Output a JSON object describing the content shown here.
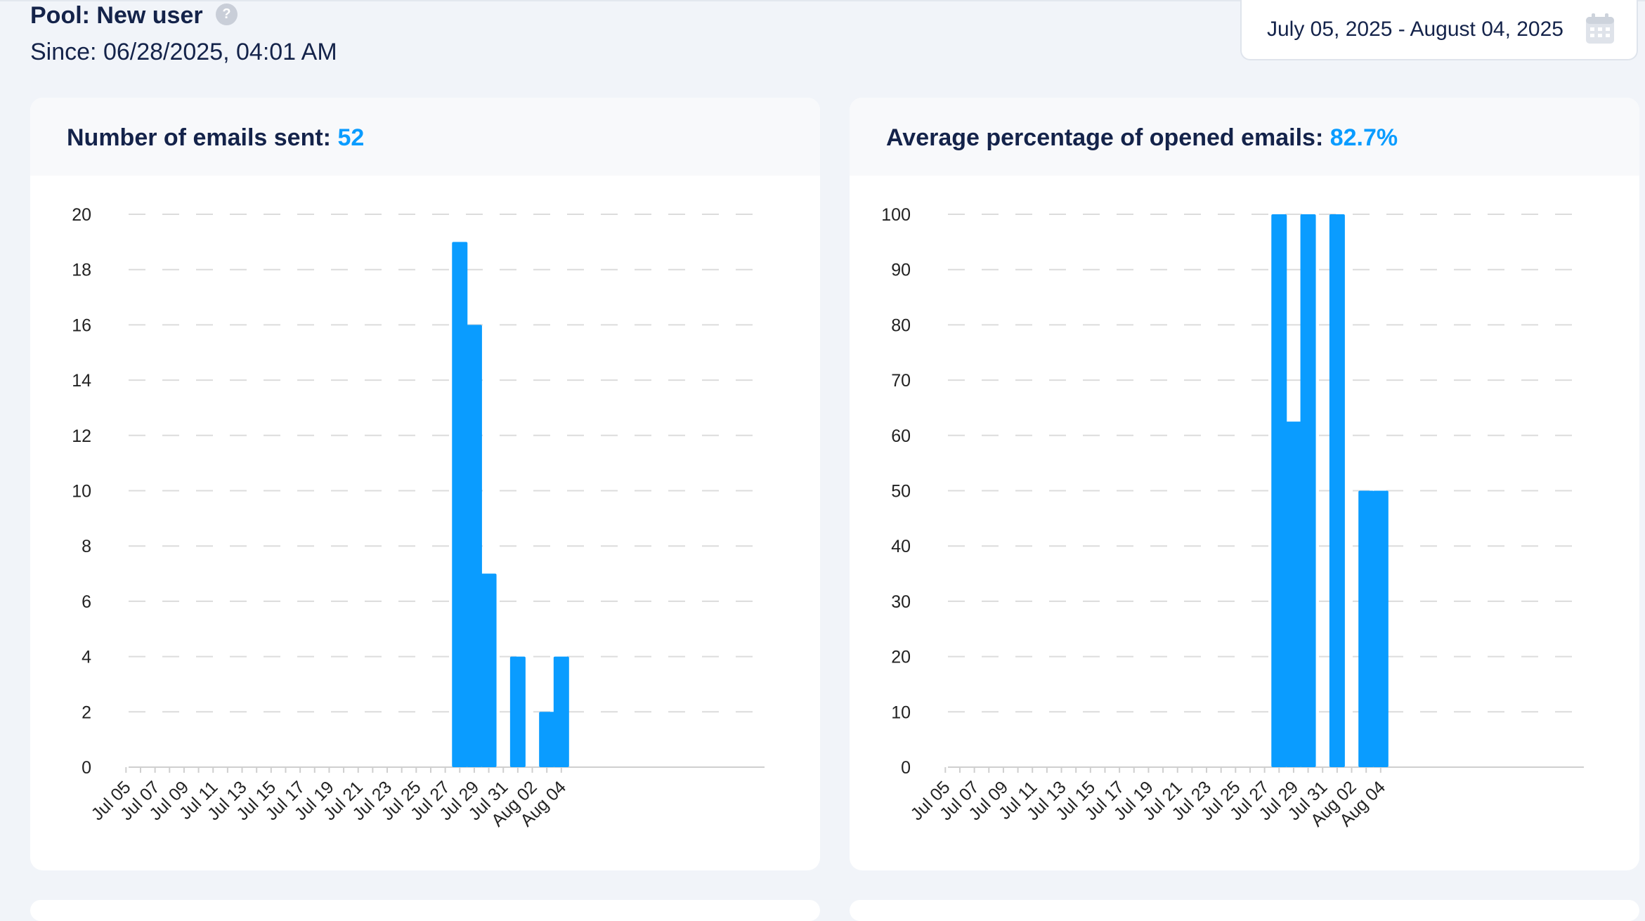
{
  "header": {
    "pool_title": "Pool: New user",
    "help_symbol": "?",
    "since": "Since: 06/28/2025, 04:01 AM",
    "date_range": "July 05, 2025 - August 04, 2025",
    "help_icon": "question-circle-icon",
    "calendar_icon": "calendar-icon"
  },
  "colors": {
    "accent": "#0a9cff",
    "bar": "#0a9cff",
    "title": "#14234a"
  },
  "chart_data": [
    {
      "type": "bar",
      "title": "Number of emails sent:",
      "title_value": "52",
      "categories": [
        "Jul 05",
        "Jul 06",
        "Jul 07",
        "Jul 08",
        "Jul 09",
        "Jul 10",
        "Jul 11",
        "Jul 12",
        "Jul 13",
        "Jul 14",
        "Jul 15",
        "Jul 16",
        "Jul 17",
        "Jul 18",
        "Jul 19",
        "Jul 20",
        "Jul 21",
        "Jul 22",
        "Jul 23",
        "Jul 24",
        "Jul 25",
        "Jul 26",
        "Jul 27",
        "Jul 28",
        "Jul 29",
        "Jul 30",
        "Jul 31",
        "Aug 01",
        "Aug 02",
        "Aug 03",
        "Aug 04"
      ],
      "tick_labels": [
        "Jul 05",
        "Jul 07",
        "Jul 09",
        "Jul 11",
        "Jul 13",
        "Jul 15",
        "Jul 17",
        "Jul 19",
        "Jul 21",
        "Jul 23",
        "Jul 25",
        "Jul 27",
        "Jul 29",
        "Jul 31",
        "Aug 02",
        "Aug 04"
      ],
      "values": [
        0,
        0,
        0,
        0,
        0,
        0,
        0,
        0,
        0,
        0,
        0,
        0,
        0,
        0,
        0,
        0,
        0,
        0,
        0,
        0,
        0,
        0,
        0,
        19,
        16,
        7,
        0,
        4,
        0,
        2,
        4
      ],
      "ylim": [
        0,
        20
      ],
      "yticks": [
        0,
        2,
        4,
        6,
        8,
        10,
        12,
        14,
        16,
        18,
        20
      ],
      "grid": true,
      "xlabel": "",
      "ylabel": ""
    },
    {
      "type": "bar",
      "title": "Average percentage of opened emails:",
      "title_value": "82.7%",
      "categories": [
        "Jul 05",
        "Jul 06",
        "Jul 07",
        "Jul 08",
        "Jul 09",
        "Jul 10",
        "Jul 11",
        "Jul 12",
        "Jul 13",
        "Jul 14",
        "Jul 15",
        "Jul 16",
        "Jul 17",
        "Jul 18",
        "Jul 19",
        "Jul 20",
        "Jul 21",
        "Jul 22",
        "Jul 23",
        "Jul 24",
        "Jul 25",
        "Jul 26",
        "Jul 27",
        "Jul 28",
        "Jul 29",
        "Jul 30",
        "Jul 31",
        "Aug 01",
        "Aug 02",
        "Aug 03",
        "Aug 04"
      ],
      "tick_labels": [
        "Jul 05",
        "Jul 07",
        "Jul 09",
        "Jul 11",
        "Jul 13",
        "Jul 15",
        "Jul 17",
        "Jul 19",
        "Jul 21",
        "Jul 23",
        "Jul 25",
        "Jul 27",
        "Jul 29",
        "Jul 31",
        "Aug 02",
        "Aug 04"
      ],
      "values": [
        0,
        0,
        0,
        0,
        0,
        0,
        0,
        0,
        0,
        0,
        0,
        0,
        0,
        0,
        0,
        0,
        0,
        0,
        0,
        0,
        0,
        0,
        0,
        100,
        62.5,
        100,
        0,
        100,
        0,
        50,
        50
      ],
      "ylim": [
        0,
        100
      ],
      "yticks": [
        0,
        10,
        20,
        30,
        40,
        50,
        60,
        70,
        80,
        90,
        100
      ],
      "grid": true,
      "xlabel": "",
      "ylabel": ""
    }
  ]
}
